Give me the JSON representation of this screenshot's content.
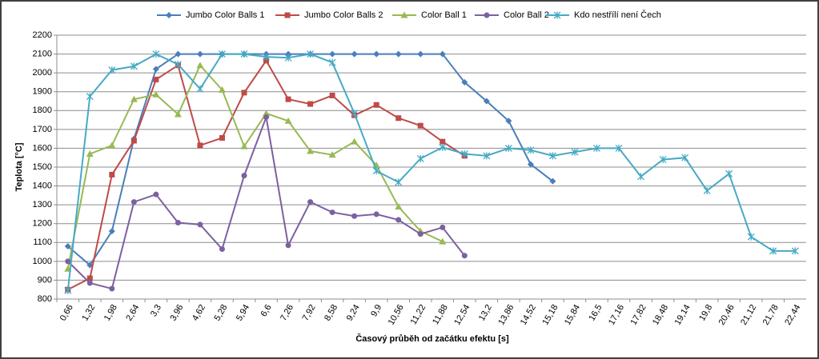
{
  "chart_data": {
    "type": "line",
    "x_label": "Časový průběh od začátku efektu [s]",
    "y_label": "Teplota [°C]",
    "categories": [
      "0,66",
      "1,32",
      "1,98",
      "2,64",
      "3,3",
      "3,96",
      "4,62",
      "5,28",
      "5,94",
      "6,6",
      "7,26",
      "7,92",
      "8,58",
      "9,24",
      "9,9",
      "10,56",
      "11,22",
      "11,88",
      "12,54",
      "13,2",
      "13,86",
      "14,52",
      "15,18",
      "15,84",
      "16,5",
      "17,16",
      "17,82",
      "18,48",
      "19,14",
      "19,8",
      "20,46",
      "21,12",
      "21,78",
      "22,44"
    ],
    "ylim": [
      800,
      2200
    ],
    "yticks": [
      800,
      900,
      1000,
      1100,
      1200,
      1300,
      1400,
      1500,
      1600,
      1700,
      1800,
      1900,
      2000,
      2100,
      2200
    ],
    "grid": true,
    "legend": "top",
    "series": [
      {
        "name": "Jumbo Color Balls 1",
        "color": "#4a7ebb",
        "marker": "diamond",
        "values": [
          1080,
          980,
          1160,
          1650,
          2020,
          2100,
          2100,
          2100,
          2100,
          2100,
          2100,
          2100,
          2100,
          2100,
          2100,
          2100,
          2100,
          2100,
          1950,
          1850,
          1745,
          1515,
          1425,
          null,
          null,
          null,
          null,
          null,
          null,
          null,
          null,
          null,
          null,
          null
        ]
      },
      {
        "name": "Jumbo Color Balls 2",
        "color": "#be4b48",
        "marker": "square",
        "values": [
          850,
          910,
          1460,
          1640,
          1965,
          2040,
          1615,
          1655,
          1895,
          2065,
          1860,
          1835,
          1880,
          1775,
          1830,
          1760,
          1720,
          1635,
          1560,
          null,
          null,
          null,
          null,
          null,
          null,
          null,
          null,
          null,
          null,
          null,
          null,
          null,
          null,
          null
        ]
      },
      {
        "name": "Color Ball 1",
        "color": "#98b954",
        "marker": "triangle",
        "values": [
          960,
          1570,
          1615,
          1860,
          1885,
          1780,
          2040,
          1910,
          1610,
          1785,
          1745,
          1585,
          1565,
          1635,
          1510,
          1290,
          1160,
          1105,
          null,
          null,
          null,
          null,
          null,
          null,
          null,
          null,
          null,
          null,
          null,
          null,
          null,
          null,
          null,
          null
        ]
      },
      {
        "name": "Color Ball 2",
        "color": "#7d60a0",
        "marker": "circle",
        "values": [
          1000,
          885,
          855,
          1315,
          1355,
          1205,
          1195,
          1065,
          1455,
          1765,
          1085,
          1315,
          1260,
          1240,
          1250,
          1220,
          1145,
          1180,
          1030,
          null,
          null,
          null,
          null,
          null,
          null,
          null,
          null,
          null,
          null,
          null,
          null,
          null,
          null,
          null
        ]
      },
      {
        "name": "Kdo nestřílí není Čech",
        "color": "#46aac5",
        "marker": "star",
        "values": [
          845,
          1875,
          2015,
          2035,
          2100,
          2045,
          1915,
          2100,
          2100,
          2085,
          2080,
          2100,
          2055,
          1785,
          1480,
          1420,
          1545,
          1605,
          1570,
          1560,
          1600,
          1590,
          1560,
          1580,
          1600,
          1600,
          1450,
          1540,
          1550,
          1375,
          1465,
          1130,
          1055,
          1055
        ]
      }
    ]
  }
}
